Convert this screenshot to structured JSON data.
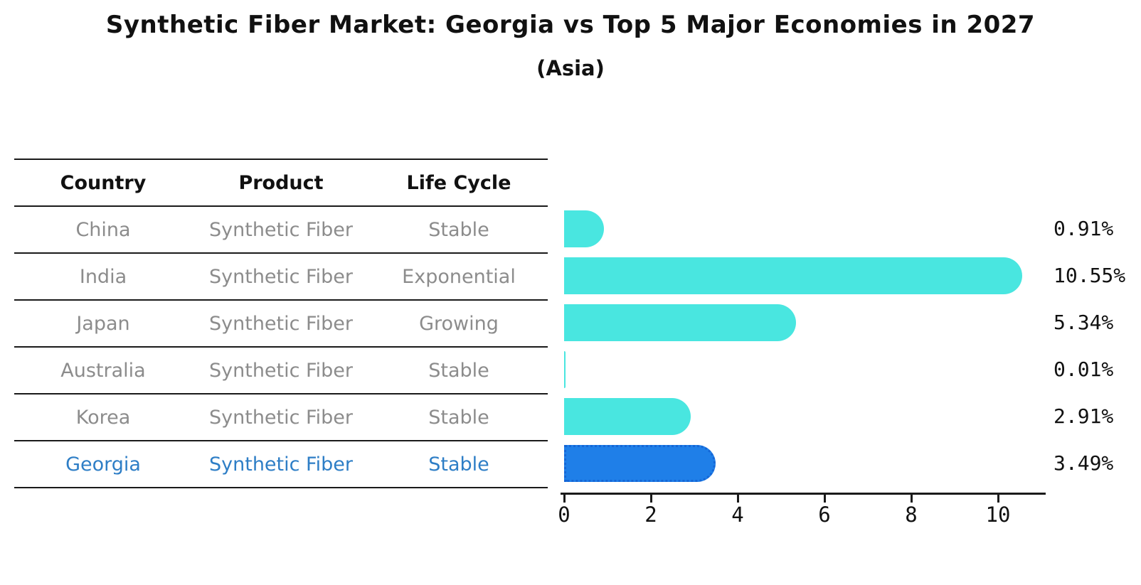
{
  "chart_data": {
    "type": "bar",
    "orientation": "horizontal",
    "title": "Synthetic Fiber Market: Georgia vs Top 5 Major Economies in 2027",
    "subtitle": "(Asia)",
    "categories": [
      "China",
      "India",
      "Japan",
      "Australia",
      "Korea",
      "Georgia"
    ],
    "values": [
      0.91,
      10.55,
      5.34,
      0.01,
      2.91,
      3.49
    ],
    "value_labels": [
      "0.91%",
      "10.55%",
      "5.34%",
      "0.01%",
      "2.91%",
      "3.49%"
    ],
    "unit": "%",
    "x_ticks": [
      0,
      2,
      4,
      6,
      8,
      10
    ],
    "xlim": [
      0,
      11.1
    ],
    "grid": false,
    "legend_position": "none",
    "bar_color": "#49e6e0",
    "highlight_color": "#1f7fe8",
    "highlight_border_color": "#1566d6",
    "highlight_index": 5,
    "axis_color": "#1a1a1a"
  },
  "table": {
    "headers": [
      "Country",
      "Product",
      "Life Cycle"
    ],
    "rows": [
      [
        "China",
        "Synthetic Fiber",
        "Stable"
      ],
      [
        "India",
        "Synthetic Fiber",
        "Exponential"
      ],
      [
        "Japan",
        "Synthetic Fiber",
        "Growing"
      ],
      [
        "Australia",
        "Synthetic Fiber",
        "Stable"
      ],
      [
        "Korea",
        "Synthetic Fiber",
        "Stable"
      ],
      [
        "Georgia",
        "Synthetic Fiber",
        "Stable"
      ]
    ],
    "highlight_row": 5,
    "highlight_text_color": "#2e7ec6",
    "body_text_color": "#8c8c8c",
    "header_text_color": "#111111"
  }
}
